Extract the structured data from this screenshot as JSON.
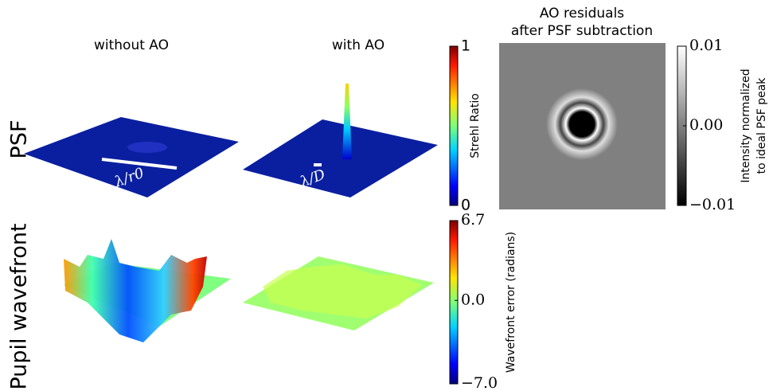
{
  "columns": [
    "without AO",
    "with AO"
  ],
  "rows": [
    "PSF",
    "Pupil wavefront"
  ],
  "scale_labels": [
    "λ/r0",
    "λ/D"
  ],
  "residuals": {
    "title": [
      "AO residuals",
      "after PSF subtraction"
    ]
  },
  "colorbars": [
    {
      "label": [
        "Strehl Ratio"
      ],
      "lim": [
        0,
        1
      ],
      "ticks": [
        0,
        1
      ]
    },
    {
      "label": [
        "Wavefront error (radians)"
      ],
      "lim": [
        -7,
        6.7
      ],
      "ticks": [
        {
          "value": -7,
          "label": "−7.0"
        },
        {
          "value": 0,
          "label": "0.0"
        },
        6.7
      ]
    },
    {
      "label": [
        "Intensity normalized",
        "to ideal PSF peak"
      ],
      "lim": [
        -0.01,
        0.01
      ],
      "ticks": [
        {
          "value": -0.01,
          "label": "−0.01"
        },
        {
          "value": 0,
          "label": "0.00"
        },
        0.01
      ]
    }
  ]
}
